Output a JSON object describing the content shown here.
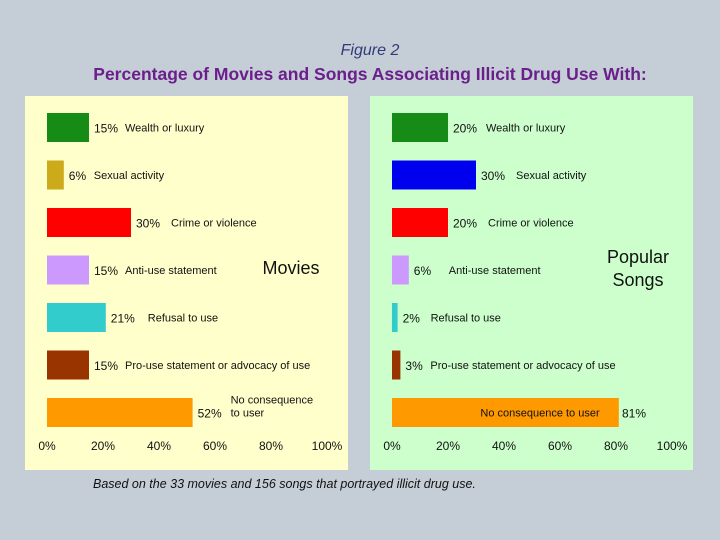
{
  "header": {
    "figure_label": "Figure 2",
    "title": "Percentage of Movies and Songs Associating Illicit Drug Use With:"
  },
  "footnote": "Based on the 33 movies and 156 songs that portrayed illicit drug use.",
  "chart_data": [
    {
      "type": "bar",
      "orientation": "horizontal",
      "panel_label": "Movies",
      "categories": [
        "Wealth or luxury",
        "Sexual activity",
        "Crime or violence",
        "Anti-use statement",
        "Refusal to use",
        "Pro-use statement or advocacy of use",
        "No consequence to user"
      ],
      "category_lines": [
        [
          "Wealth or luxury"
        ],
        [
          "Sexual activity"
        ],
        [
          "Crime or violence"
        ],
        [
          "Anti-use statement"
        ],
        [
          "Refusal to use"
        ],
        [
          "Pro-use statement or advocacy of use"
        ],
        [
          "No consequence",
          "to user"
        ]
      ],
      "values": [
        15,
        6,
        30,
        15,
        21,
        15,
        52
      ],
      "value_labels": [
        "15%",
        "6%",
        "30%",
        "15%",
        "21%",
        "15%",
        "52%"
      ],
      "colors": [
        "#168b16",
        "#ccaa1a",
        "#ff0000",
        "#cc99ff",
        "#33cccc",
        "#993300",
        "#ff9900"
      ],
      "xlim": [
        0,
        100
      ],
      "xticks": [
        "0%",
        "20%",
        "40%",
        "60%",
        "80%",
        "100%"
      ],
      "background": "#ffffcc"
    },
    {
      "type": "bar",
      "orientation": "horizontal",
      "panel_label": "Popular Songs",
      "panel_label_lines": [
        "Popular",
        "Songs"
      ],
      "categories": [
        "Wealth or luxury",
        "Sexual activity",
        "Crime or violence",
        "Anti-use statement",
        "Refusal to use",
        "Pro-use statement or advocacy of use",
        "No consequence to user"
      ],
      "category_lines": [
        [
          "Wealth or luxury"
        ],
        [
          "Sexual activity"
        ],
        [
          "Crime or violence"
        ],
        [
          "Anti-use statement"
        ],
        [
          "Refusal to use"
        ],
        [
          "Pro-use statement or advocacy of use"
        ],
        [
          "No consequence to user"
        ]
      ],
      "values": [
        20,
        30,
        20,
        6,
        2,
        3,
        81
      ],
      "value_labels": [
        "20%",
        "30%",
        "20%",
        "6%",
        "2%",
        "3%",
        "81%"
      ],
      "colors": [
        "#168b16",
        "#0000ee",
        "#ff0000",
        "#cc99ff",
        "#33cccc",
        "#993300",
        "#ff9900"
      ],
      "xlim": [
        0,
        100
      ],
      "xticks": [
        "0%",
        "20%",
        "40%",
        "60%",
        "80%",
        "100%"
      ],
      "background": "#ccffcc"
    }
  ]
}
